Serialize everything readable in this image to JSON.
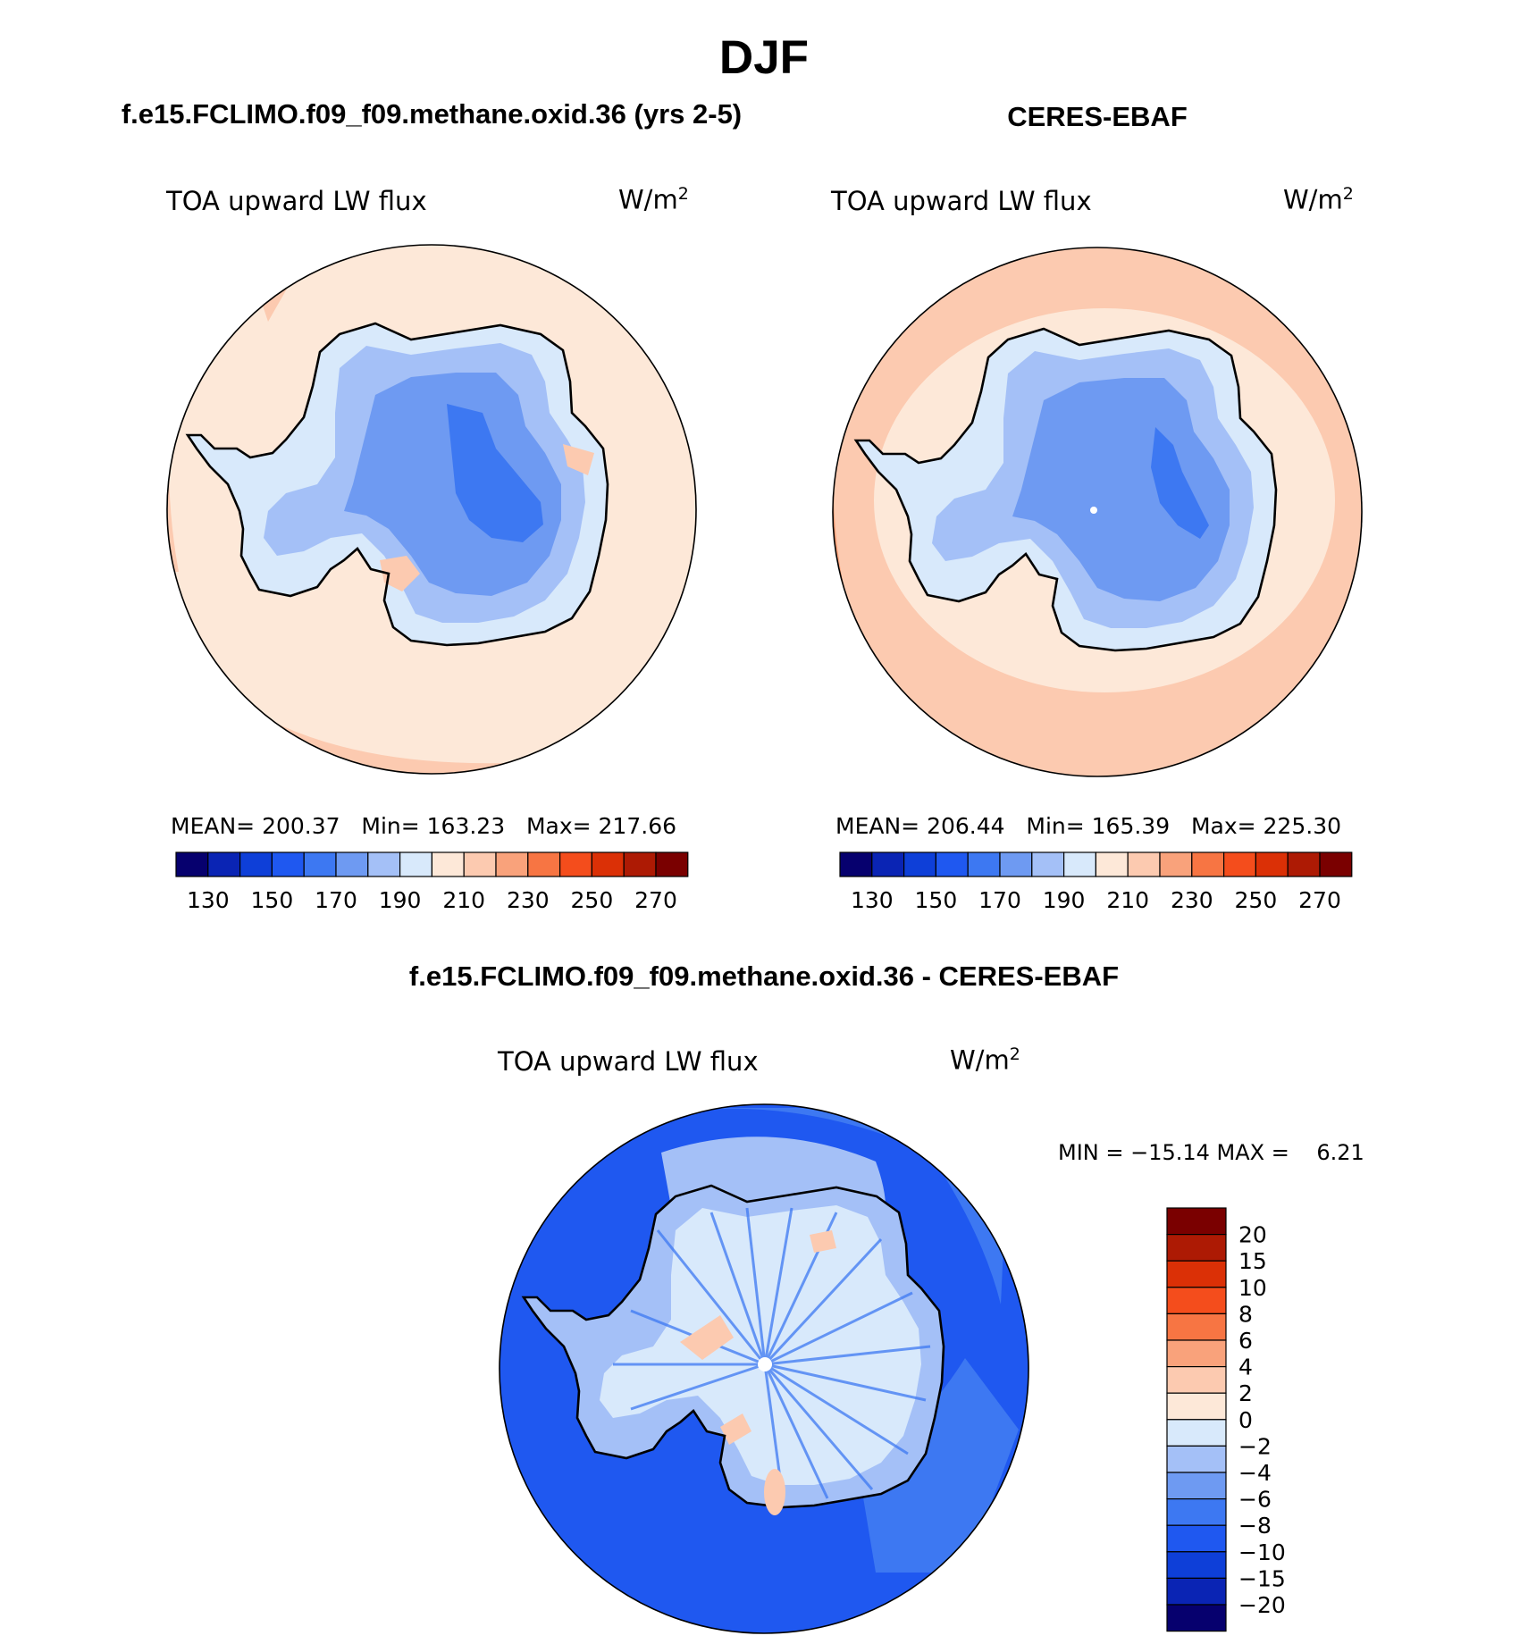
{
  "title": "DJF",
  "panel_titles": {
    "model": "f.e15.FCLIMO.f09_f09.methane.oxid.36 (yrs 2-5)",
    "obs": "CERES-EBAF",
    "diff": "f.e15.FCLIMO.f09_f09.methane.oxid.36 - CERES-EBAF"
  },
  "variable_label": "TOA upward LW flux",
  "units_base": "W/m",
  "units_exp": "2",
  "stats": {
    "model": "MEAN= 200.37   Min= 163.23   Max= 217.66",
    "obs": "MEAN= 206.44   Min= 165.39   Max= 225.30",
    "diff": "MIN = −15.14 MAX =    6.21"
  },
  "colorbar_abs": {
    "levels": [
      120,
      130,
      140,
      150,
      160,
      170,
      180,
      190,
      200,
      210,
      220,
      230,
      240,
      250,
      260,
      270,
      280
    ],
    "tick_labels": [
      "130",
      "150",
      "170",
      "190",
      "210",
      "230",
      "250",
      "270"
    ],
    "colors": [
      "#06006e",
      "#0a24b4",
      "#0e3fd8",
      "#1f58f0",
      "#3d78f2",
      "#6e9af2",
      "#a4c0f7",
      "#d8e9fb",
      "#fde8d8",
      "#fccab0",
      "#f9a27b",
      "#f77543",
      "#f44d1c",
      "#db3006",
      "#ad1a04",
      "#7a0000"
    ]
  },
  "colorbar_diff": {
    "tick_labels": [
      "20",
      "15",
      "10",
      "8",
      "6",
      "4",
      "2",
      "0",
      "−2",
      "−4",
      "−6",
      "−8",
      "−10",
      "−15",
      "−20"
    ],
    "colors": [
      "#7a0000",
      "#ad1a04",
      "#db3006",
      "#f44d1c",
      "#f77543",
      "#f9a27b",
      "#fccab0",
      "#fde8d8",
      "#d8e9fb",
      "#a4c0f7",
      "#6e9af2",
      "#3d78f2",
      "#1f58f0",
      "#0e3fd8",
      "#0a24b4",
      "#06006e"
    ]
  },
  "map_colors": {
    "ocean_model": "#fde8d8",
    "ocean_model_warm": "#fccab0",
    "ocean_obs_outer": "#f9a27b",
    "ocean_obs": "#fccab0",
    "ocean_obs_ring": "#fde8d8",
    "land_edge": "#d8e9fb",
    "land_mid": "#a4c0f7",
    "land_inner": "#6e9af2",
    "land_core": "#3d78f2",
    "diff_ocean": "#1f58f0",
    "diff_ocean_light": "#3d78f2",
    "diff_land": "#a4c0f7",
    "diff_land_light": "#d8e9fb",
    "diff_positive": "#fccab0",
    "coast": "#000000"
  }
}
